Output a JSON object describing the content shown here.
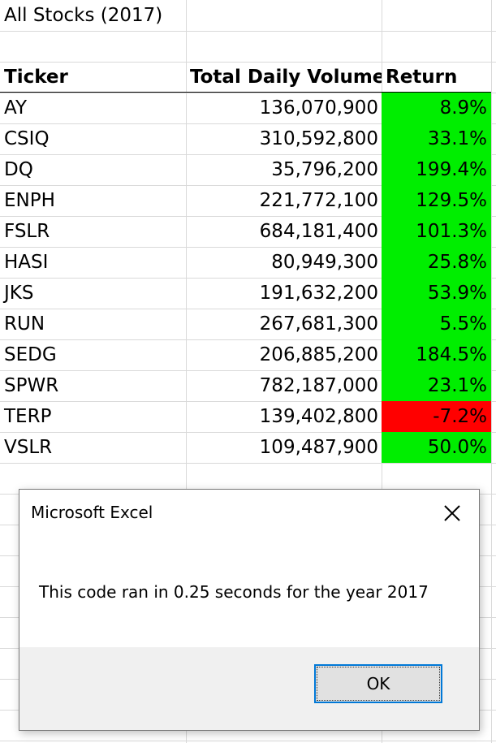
{
  "sheet": {
    "title": "All Stocks (2017)",
    "headers": {
      "ticker": "Ticker",
      "volume": "Total Daily Volume",
      "return": "Return"
    },
    "rows": [
      {
        "ticker": "AY",
        "volume": "136,070,900",
        "return": "8.9%",
        "fill": "#00ee00"
      },
      {
        "ticker": "CSIQ",
        "volume": "310,592,800",
        "return": "33.1%",
        "fill": "#00ee00"
      },
      {
        "ticker": "DQ",
        "volume": "35,796,200",
        "return": "199.4%",
        "fill": "#00ee00"
      },
      {
        "ticker": "ENPH",
        "volume": "221,772,100",
        "return": "129.5%",
        "fill": "#00ee00"
      },
      {
        "ticker": "FSLR",
        "volume": "684,181,400",
        "return": "101.3%",
        "fill": "#00ee00"
      },
      {
        "ticker": "HASI",
        "volume": "80,949,300",
        "return": "25.8%",
        "fill": "#00ee00"
      },
      {
        "ticker": "JKS",
        "volume": "191,632,200",
        "return": "53.9%",
        "fill": "#00ee00"
      },
      {
        "ticker": "RUN",
        "volume": "267,681,300",
        "return": "5.5%",
        "fill": "#00ee00"
      },
      {
        "ticker": "SEDG",
        "volume": "206,885,200",
        "return": "184.5%",
        "fill": "#00ee00"
      },
      {
        "ticker": "SPWR",
        "volume": "782,187,000",
        "return": "23.1%",
        "fill": "#00ee00"
      },
      {
        "ticker": "TERP",
        "volume": "139,402,800",
        "return": "-7.2%",
        "fill": "#ff0000"
      },
      {
        "ticker": "VSLR",
        "volume": "109,487,900",
        "return": "50.0%",
        "fill": "#00ee00"
      }
    ]
  },
  "dialog": {
    "title": "Microsoft Excel",
    "close_icon": "close-icon",
    "message": "This code ran in 0.25 seconds for the year 2017",
    "ok_label": "OK",
    "accent": "#0078d7"
  }
}
